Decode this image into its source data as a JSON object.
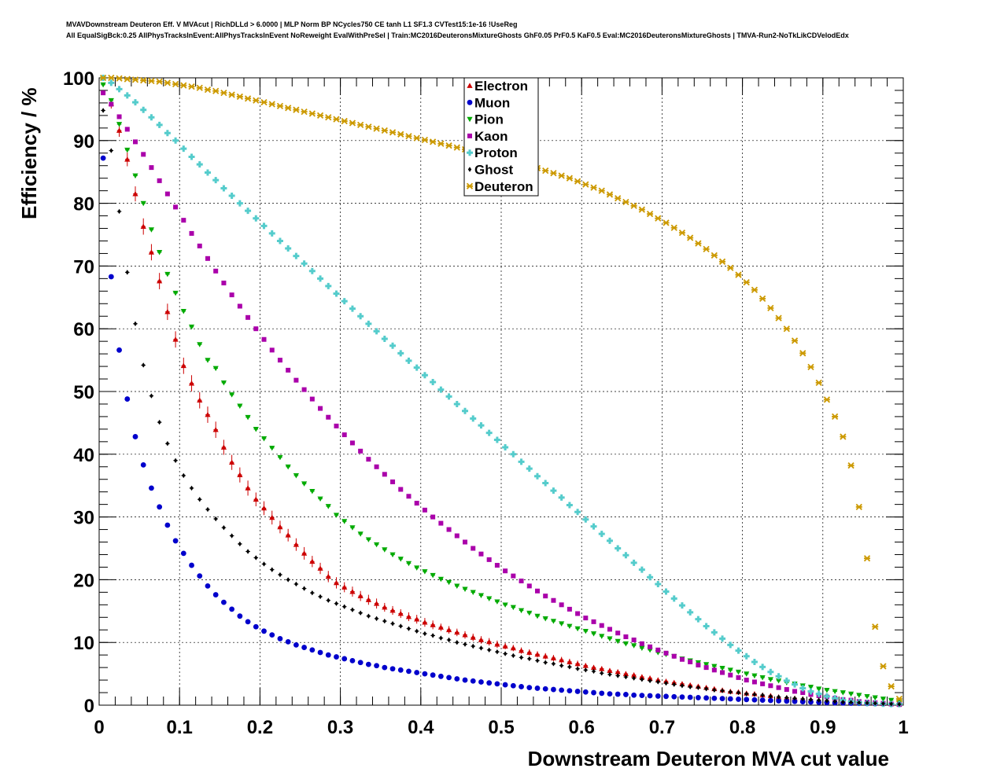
{
  "title_lines": [
    "MVAVDownstream Deuteron Eff. V MVAcut | RichDLLd > 6.0000 | MLP Norm BP NCycles750 CE tanh L1 SF1.3 CVTest15:1e-16 !UseReg",
    "All EqualSigBck:0.25 AllPhysTracksInEvent:AllPhysTracksInEvent NoReweight EvalWithPreSel | Train:MC2016DeuteronsMixtureGhosts GhF0.05 PrF0.5 KaF0.5 Eval:MC2016DeuteronsMixtureGhosts | TMVA-Run2-NoTkLikCDVelodEdx"
  ],
  "chart_data": {
    "type": "scatter",
    "title": "",
    "xlabel": "Downstream Deuteron MVA cut value",
    "ylabel": "Efficiency / %",
    "xlim": [
      0,
      1
    ],
    "ylim": [
      0,
      100
    ],
    "xticks": [
      "0",
      "0.1",
      "0.2",
      "0.3",
      "0.4",
      "0.5",
      "0.6",
      "0.7",
      "0.8",
      "0.9",
      "1"
    ],
    "yticks": [
      "0",
      "10",
      "20",
      "30",
      "40",
      "50",
      "60",
      "70",
      "80",
      "90",
      "100"
    ],
    "grid": true,
    "legend_position": "top-center",
    "x": [
      0.005,
      0.015,
      0.025,
      0.035,
      0.045,
      0.055,
      0.065,
      0.075,
      0.085,
      0.095,
      0.105,
      0.115,
      0.125,
      0.135,
      0.145,
      0.155,
      0.165,
      0.175,
      0.185,
      0.195,
      0.205,
      0.215,
      0.225,
      0.235,
      0.245,
      0.255,
      0.265,
      0.275,
      0.285,
      0.295,
      0.305,
      0.315,
      0.325,
      0.335,
      0.345,
      0.355,
      0.365,
      0.375,
      0.385,
      0.395,
      0.405,
      0.415,
      0.425,
      0.435,
      0.445,
      0.455,
      0.465,
      0.475,
      0.485,
      0.495,
      0.505,
      0.515,
      0.525,
      0.535,
      0.545,
      0.555,
      0.565,
      0.575,
      0.585,
      0.595,
      0.605,
      0.615,
      0.625,
      0.635,
      0.645,
      0.655,
      0.665,
      0.675,
      0.685,
      0.695,
      0.705,
      0.715,
      0.725,
      0.735,
      0.745,
      0.755,
      0.765,
      0.775,
      0.785,
      0.795,
      0.805,
      0.815,
      0.825,
      0.835,
      0.845,
      0.855,
      0.865,
      0.875,
      0.885,
      0.895,
      0.905,
      0.915,
      0.925,
      0.935,
      0.945,
      0.955,
      0.965,
      0.975,
      0.985,
      0.995
    ],
    "series": [
      {
        "name": "Electron",
        "color": "#cc0000",
        "marker": "triangle-up",
        "values": [
          100.0,
          95.9,
          91.6,
          87.0,
          81.5,
          76.3,
          72.2,
          67.6,
          62.7,
          58.3,
          54.1,
          51.3,
          48.6,
          46.3,
          43.9,
          41.1,
          38.7,
          36.7,
          34.6,
          32.8,
          31.4,
          29.9,
          28.4,
          27.1,
          25.6,
          24.2,
          22.9,
          21.8,
          20.5,
          19.5,
          18.8,
          18.1,
          17.4,
          16.8,
          16.2,
          15.6,
          15.1,
          14.6,
          14.1,
          13.7,
          13.2,
          12.8,
          12.4,
          12.0,
          11.6,
          11.2,
          10.8,
          10.4,
          10.1,
          9.7,
          9.4,
          9.1,
          8.7,
          8.4,
          8.1,
          7.8,
          7.5,
          7.2,
          6.9,
          6.6,
          6.3,
          6.0,
          5.8,
          5.5,
          5.3,
          5.0,
          4.8,
          4.5,
          4.3,
          4.0,
          3.8,
          3.6,
          3.4,
          3.2,
          3.0,
          2.8,
          2.6,
          2.4,
          2.2,
          2.1,
          1.9,
          1.8,
          1.6,
          1.5,
          1.3,
          1.2,
          1.1,
          1.0,
          0.9,
          0.8,
          0.7,
          0.6,
          0.5,
          0.45,
          0.4,
          0.35,
          0.3,
          0.25,
          0.2,
          0.15
        ],
        "errors": [
          0.5,
          0.8,
          1.0,
          1.1,
          1.2,
          1.3,
          1.3,
          1.3,
          1.3,
          1.3,
          1.3,
          1.3,
          1.3,
          1.3,
          1.3,
          1.2,
          1.2,
          1.2,
          1.2,
          1.1,
          1.1,
          1.1,
          1.0,
          1.0,
          1.0,
          1.0,
          0.9,
          0.9,
          0.9,
          0.9,
          0.8,
          0.8,
          0.8,
          0.8,
          0.8,
          0.7,
          0.7,
          0.7,
          0.7,
          0.7,
          0.7,
          0.7,
          0.6,
          0.6,
          0.6,
          0.6,
          0.6,
          0.6,
          0.6,
          0.6,
          0.5,
          0.5,
          0.5,
          0.5,
          0.5,
          0.5,
          0.5,
          0.5,
          0.5,
          0.5,
          0.4,
          0.4,
          0.4,
          0.4,
          0.4,
          0.4,
          0.4,
          0.4,
          0.4,
          0.4,
          0.4,
          0.3,
          0.3,
          0.3,
          0.3,
          0.3,
          0.3,
          0.3,
          0.3,
          0.3,
          0.3,
          0.3,
          0.3,
          0.3,
          0.2,
          0.2,
          0.2,
          0.2,
          0.2,
          0.2,
          0.2,
          0.2,
          0.2,
          0.2,
          0.1,
          0.1,
          0.1,
          0.1,
          0.1,
          0.1
        ]
      },
      {
        "name": "Muon",
        "color": "#0000cc",
        "marker": "circle",
        "values": [
          87.2,
          68.3,
          56.6,
          48.8,
          42.8,
          38.3,
          34.6,
          31.6,
          28.7,
          26.2,
          24.2,
          22.3,
          20.6,
          19.0,
          17.6,
          16.4,
          15.3,
          14.2,
          13.3,
          12.5,
          11.8,
          11.2,
          10.6,
          10.1,
          9.6,
          9.2,
          8.8,
          8.4,
          8.0,
          7.7,
          7.4,
          7.1,
          6.8,
          6.5,
          6.3,
          6.0,
          5.8,
          5.6,
          5.4,
          5.2,
          5.0,
          4.8,
          4.6,
          4.4,
          4.2,
          4.0,
          3.85,
          3.7,
          3.55,
          3.4,
          3.25,
          3.1,
          2.95,
          2.8,
          2.7,
          2.6,
          2.5,
          2.4,
          2.3,
          2.2,
          2.1,
          2.0,
          1.9,
          1.8,
          1.75,
          1.7,
          1.6,
          1.55,
          1.5,
          1.45,
          1.4,
          1.35,
          1.3,
          1.25,
          1.2,
          1.15,
          1.1,
          1.05,
          1.0,
          0.95,
          0.9,
          0.85,
          0.8,
          0.75,
          0.7,
          0.65,
          0.6,
          0.55,
          0.5,
          0.45,
          0.4,
          0.37,
          0.34,
          0.31,
          0.28,
          0.25,
          0.22,
          0.19,
          0.16,
          0.13
        ]
      },
      {
        "name": "Pion",
        "color": "#00aa00",
        "marker": "triangle-down",
        "values": [
          98.9,
          96.4,
          92.6,
          88.5,
          84.4,
          80.0,
          75.8,
          72.2,
          68.7,
          65.7,
          62.8,
          60.3,
          57.5,
          55.0,
          53.7,
          51.4,
          49.5,
          47.7,
          45.9,
          44.0,
          42.5,
          41.0,
          39.5,
          38.0,
          36.6,
          35.3,
          34.1,
          32.9,
          31.7,
          30.3,
          29.3,
          28.3,
          27.3,
          26.4,
          25.6,
          24.8,
          24.0,
          23.3,
          22.6,
          21.9,
          21.3,
          20.7,
          20.1,
          19.6,
          19.0,
          18.5,
          18.0,
          17.5,
          17.0,
          16.5,
          16.0,
          15.6,
          15.1,
          14.7,
          14.2,
          13.8,
          13.4,
          13.0,
          12.6,
          12.2,
          11.8,
          11.4,
          11.0,
          10.6,
          10.2,
          9.8,
          9.5,
          9.1,
          8.8,
          8.4,
          8.1,
          7.8,
          7.4,
          7.1,
          6.8,
          6.5,
          6.2,
          5.9,
          5.6,
          5.3,
          5.0,
          4.7,
          4.4,
          4.1,
          3.9,
          3.6,
          3.4,
          3.1,
          2.9,
          2.6,
          2.4,
          2.2,
          2.0,
          1.8,
          1.6,
          1.4,
          1.2,
          1.0,
          0.8,
          0.5
        ]
      },
      {
        "name": "Kaon",
        "color": "#aa00aa",
        "marker": "square",
        "values": [
          97.6,
          95.8,
          93.8,
          91.8,
          89.8,
          87.8,
          85.7,
          83.6,
          81.5,
          79.4,
          77.3,
          75.2,
          73.2,
          71.2,
          69.2,
          67.3,
          65.4,
          63.6,
          61.8,
          60.0,
          58.3,
          56.6,
          55.0,
          53.4,
          51.8,
          50.3,
          48.8,
          47.3,
          45.9,
          44.5,
          43.1,
          41.8,
          40.5,
          39.2,
          38.0,
          36.8,
          35.6,
          34.4,
          33.3,
          32.2,
          31.1,
          30.0,
          29.0,
          28.0,
          27.0,
          26.0,
          25.0,
          24.1,
          23.2,
          22.3,
          21.4,
          20.6,
          19.8,
          19.0,
          18.2,
          17.4,
          16.7,
          16.0,
          15.3,
          14.6,
          13.9,
          13.3,
          12.7,
          12.1,
          11.5,
          10.9,
          10.4,
          9.8,
          9.3,
          8.8,
          8.3,
          7.8,
          7.3,
          6.9,
          6.4,
          6.0,
          5.6,
          5.2,
          4.8,
          4.4,
          4.0,
          3.7,
          3.4,
          3.1,
          2.8,
          2.5,
          2.2,
          2.0,
          1.7,
          1.5,
          1.3,
          1.1,
          0.9,
          0.8,
          0.6,
          0.5,
          0.4,
          0.3,
          0.2,
          0.1
        ]
      },
      {
        "name": "Proton",
        "color": "#55cccc",
        "marker": "cross",
        "values": [
          100.0,
          99.2,
          98.2,
          97.2,
          96.1,
          94.9,
          93.7,
          92.5,
          91.2,
          90.0,
          88.7,
          87.4,
          86.2,
          84.9,
          83.7,
          82.4,
          81.2,
          80.0,
          78.8,
          77.6,
          76.4,
          75.2,
          74.0,
          72.8,
          71.6,
          70.4,
          69.2,
          68.0,
          66.8,
          65.6,
          64.4,
          63.2,
          62.0,
          60.8,
          59.6,
          58.4,
          57.3,
          56.1,
          54.9,
          53.8,
          52.6,
          51.5,
          50.3,
          49.2,
          48.0,
          46.9,
          45.7,
          44.6,
          43.4,
          42.3,
          41.1,
          40.0,
          38.8,
          37.7,
          36.5,
          35.4,
          34.2,
          33.1,
          31.9,
          30.8,
          29.6,
          28.5,
          27.3,
          26.2,
          25.0,
          23.9,
          22.7,
          21.6,
          20.4,
          19.3,
          18.1,
          17.0,
          15.9,
          14.8,
          13.7,
          12.6,
          11.6,
          10.6,
          9.6,
          8.7,
          7.8,
          6.9,
          6.1,
          5.3,
          4.6,
          3.9,
          3.3,
          2.7,
          2.2,
          1.8,
          1.4,
          1.1,
          0.8,
          0.6,
          0.45,
          0.35,
          0.28,
          0.22,
          0.18,
          0.15
        ]
      },
      {
        "name": "Ghost",
        "color": "#000000",
        "marker": "diamond",
        "values": [
          94.8,
          88.4,
          78.7,
          69.0,
          60.8,
          54.2,
          49.3,
          45.1,
          41.7,
          39.0,
          36.6,
          34.6,
          32.8,
          31.2,
          29.7,
          28.3,
          27.0,
          25.7,
          24.5,
          23.5,
          22.5,
          21.6,
          20.8,
          20.0,
          19.3,
          18.6,
          17.9,
          17.3,
          16.7,
          16.2,
          15.7,
          15.2,
          14.7,
          14.2,
          13.8,
          13.4,
          13.0,
          12.6,
          12.2,
          11.8,
          11.4,
          11.1,
          10.7,
          10.4,
          10.0,
          9.7,
          9.4,
          9.1,
          8.8,
          8.5,
          8.2,
          7.9,
          7.6,
          7.4,
          7.1,
          6.8,
          6.6,
          6.3,
          6.1,
          5.8,
          5.6,
          5.4,
          5.1,
          4.9,
          4.7,
          4.5,
          4.3,
          4.1,
          3.9,
          3.7,
          3.5,
          3.3,
          3.1,
          2.9,
          2.8,
          2.6,
          2.4,
          2.3,
          2.1,
          2.0,
          1.8,
          1.7,
          1.6,
          1.4,
          1.3,
          1.2,
          1.1,
          1.0,
          0.9,
          0.8,
          0.7,
          0.6,
          0.5,
          0.45,
          0.4,
          0.35,
          0.3,
          0.25,
          0.2,
          0.15
        ]
      },
      {
        "name": "Deuteron",
        "color": "#cc9900",
        "marker": "star",
        "values": [
          100.0,
          100.0,
          99.9,
          99.8,
          99.7,
          99.6,
          99.5,
          99.4,
          99.2,
          99.0,
          98.8,
          98.6,
          98.4,
          98.1,
          97.9,
          97.6,
          97.3,
          97.0,
          96.7,
          96.4,
          96.1,
          95.8,
          95.5,
          95.2,
          94.9,
          94.6,
          94.3,
          94.0,
          93.7,
          93.4,
          93.1,
          92.8,
          92.5,
          92.2,
          91.9,
          91.6,
          91.3,
          91.0,
          90.7,
          90.4,
          90.1,
          89.8,
          89.5,
          89.2,
          88.9,
          88.6,
          88.3,
          88.0,
          87.7,
          87.4,
          87.1,
          86.8,
          86.4,
          86.0,
          85.6,
          85.2,
          84.8,
          84.4,
          84.0,
          83.5,
          83.0,
          82.5,
          82.0,
          81.4,
          80.8,
          80.2,
          79.6,
          79.0,
          78.3,
          77.6,
          76.9,
          76.1,
          75.3,
          74.5,
          73.6,
          72.7,
          71.7,
          70.7,
          69.7,
          68.6,
          67.4,
          66.2,
          64.8,
          63.3,
          61.7,
          60.0,
          58.1,
          56.1,
          53.9,
          51.4,
          48.7,
          46.0,
          42.8,
          38.2,
          31.6,
          23.4,
          12.5,
          6.2,
          3.0,
          1.0
        ]
      }
    ]
  }
}
